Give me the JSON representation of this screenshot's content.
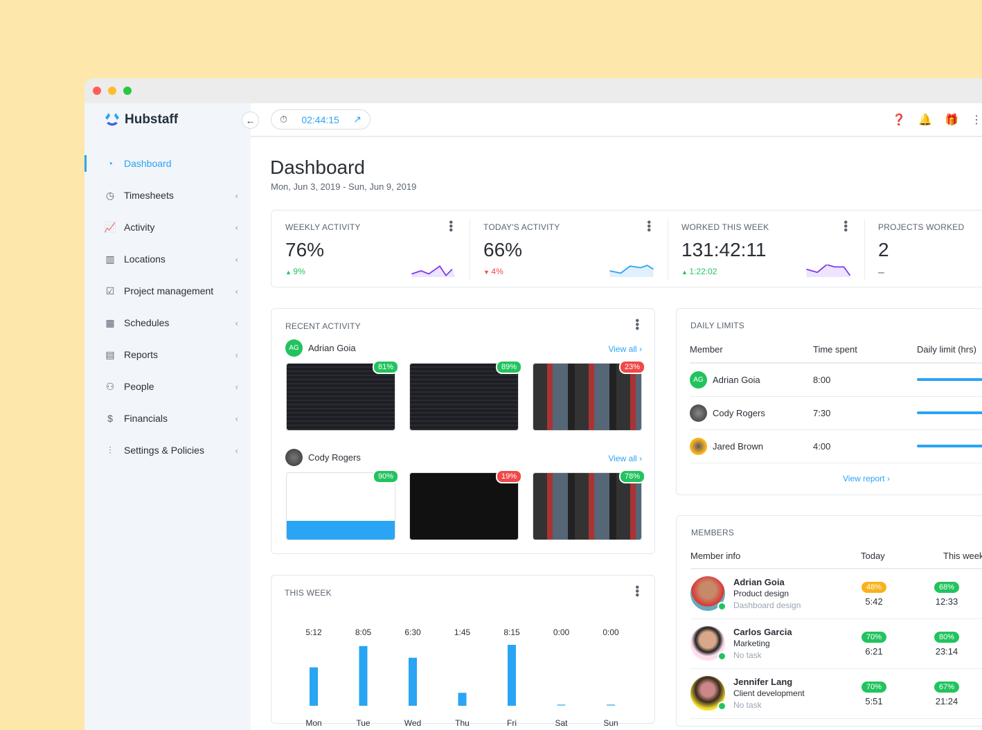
{
  "app": {
    "name": "Hubstaff",
    "timer": "02:44:15"
  },
  "colors": {
    "accent": "#2aa4f4",
    "success": "#22c35e",
    "danger": "#f04848",
    "warning": "#f9b21c",
    "background": "#fde7aa"
  },
  "sidebar": {
    "items": [
      {
        "label": "Dashboard",
        "icon": "dashboard-icon",
        "active": true
      },
      {
        "label": "Timesheets",
        "icon": "clock-icon"
      },
      {
        "label": "Activity",
        "icon": "chart-icon"
      },
      {
        "label": "Locations",
        "icon": "map-icon"
      },
      {
        "label": "Project management",
        "icon": "checkbox-icon"
      },
      {
        "label": "Schedules",
        "icon": "calendar-icon"
      },
      {
        "label": "Reports",
        "icon": "report-icon"
      },
      {
        "label": "People",
        "icon": "people-icon"
      },
      {
        "label": "Financials",
        "icon": "dollar-icon"
      },
      {
        "label": "Settings & Policies",
        "icon": "sliders-icon"
      }
    ]
  },
  "page": {
    "title": "Dashboard",
    "date_range": "Mon, Jun 3, 2019 - Sun, Jun 9, 2019"
  },
  "stats": [
    {
      "label": "WEEKLY ACTIVITY",
      "value": "76%",
      "delta": "9%",
      "trend": "up"
    },
    {
      "label": "TODAY'S ACTIVITY",
      "value": "66%",
      "delta": "4%",
      "trend": "down"
    },
    {
      "label": "WORKED THIS WEEK",
      "value": "131:42:11",
      "delta": "1:22:02",
      "trend": "up"
    },
    {
      "label": "PROJECTS WORKED",
      "value": "2",
      "delta": "–",
      "trend": "none"
    }
  ],
  "recent_activity": {
    "title": "RECENT ACTIVITY",
    "view_all": "View all",
    "users": [
      {
        "name": "Adrian Goia",
        "initials": "AG",
        "shots": [
          {
            "activity": "81%",
            "level": "g",
            "theme": "dark"
          },
          {
            "activity": "89%",
            "level": "g",
            "theme": "dark"
          },
          {
            "activity": "23%",
            "level": "r",
            "theme": "video"
          }
        ]
      },
      {
        "name": "Cody Rogers",
        "shots": [
          {
            "activity": "90%",
            "level": "g",
            "theme": "light"
          },
          {
            "activity": "19%",
            "level": "r",
            "theme": "black"
          },
          {
            "activity": "78%",
            "level": "g",
            "theme": "video"
          }
        ]
      }
    ]
  },
  "this_week": {
    "title": "THIS WEEK"
  },
  "chart_data": {
    "type": "bar",
    "categories": [
      "Mon",
      "Tue",
      "Wed",
      "Thu",
      "Fri",
      "Sat",
      "Sun"
    ],
    "values": [
      5.2,
      8.083,
      6.5,
      1.75,
      8.25,
      0,
      0
    ],
    "labels": [
      "5:12",
      "8:05",
      "6:30",
      "1:45",
      "8:15",
      "0:00",
      "0:00"
    ],
    "color": "#2aa4f4"
  },
  "daily_limits": {
    "title": "DAILY LIMITS",
    "headers": [
      "Member",
      "Time spent",
      "Daily limit (hrs)"
    ],
    "rows": [
      {
        "name": "Adrian Goia",
        "initials": "AG",
        "time": "8:00"
      },
      {
        "name": "Cody Rogers",
        "time": "7:30"
      },
      {
        "name": "Jared Brown",
        "time": "4:00"
      }
    ],
    "view_report": "View report"
  },
  "members": {
    "title": "MEMBERS",
    "headers": [
      "Member info",
      "Today",
      "This week"
    ],
    "rows": [
      {
        "name": "Adrian Goia",
        "project": "Product design",
        "task": "Dashboard design",
        "today_pct": "48%",
        "today_level": "o",
        "today_time": "5:42",
        "week_pct": "68%",
        "week_time": "12:33"
      },
      {
        "name": "Carlos Garcia",
        "project": "Marketing",
        "task": "No task",
        "today_pct": "70%",
        "today_level": "g",
        "today_time": "6:21",
        "week_pct": "80%",
        "week_time": "23:14"
      },
      {
        "name": "Jennifer Lang",
        "project": "Client development",
        "task": "No task",
        "today_pct": "70%",
        "today_level": "g",
        "today_time": "5:51",
        "week_pct": "67%",
        "week_time": "21:24"
      }
    ]
  }
}
